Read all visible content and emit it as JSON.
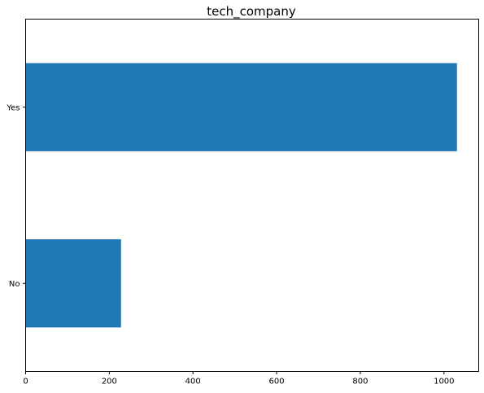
{
  "chart_data": {
    "type": "bar",
    "orientation": "horizontal",
    "title": "tech_company",
    "xlabel": "",
    "ylabel": "",
    "categories": [
      "No",
      "Yes"
    ],
    "values": [
      228,
      1031
    ],
    "xlim": [
      0,
      1083
    ],
    "xticks": [
      0,
      200,
      400,
      600,
      800,
      1000
    ],
    "grid": false,
    "bar_color": "#1f77b4"
  }
}
